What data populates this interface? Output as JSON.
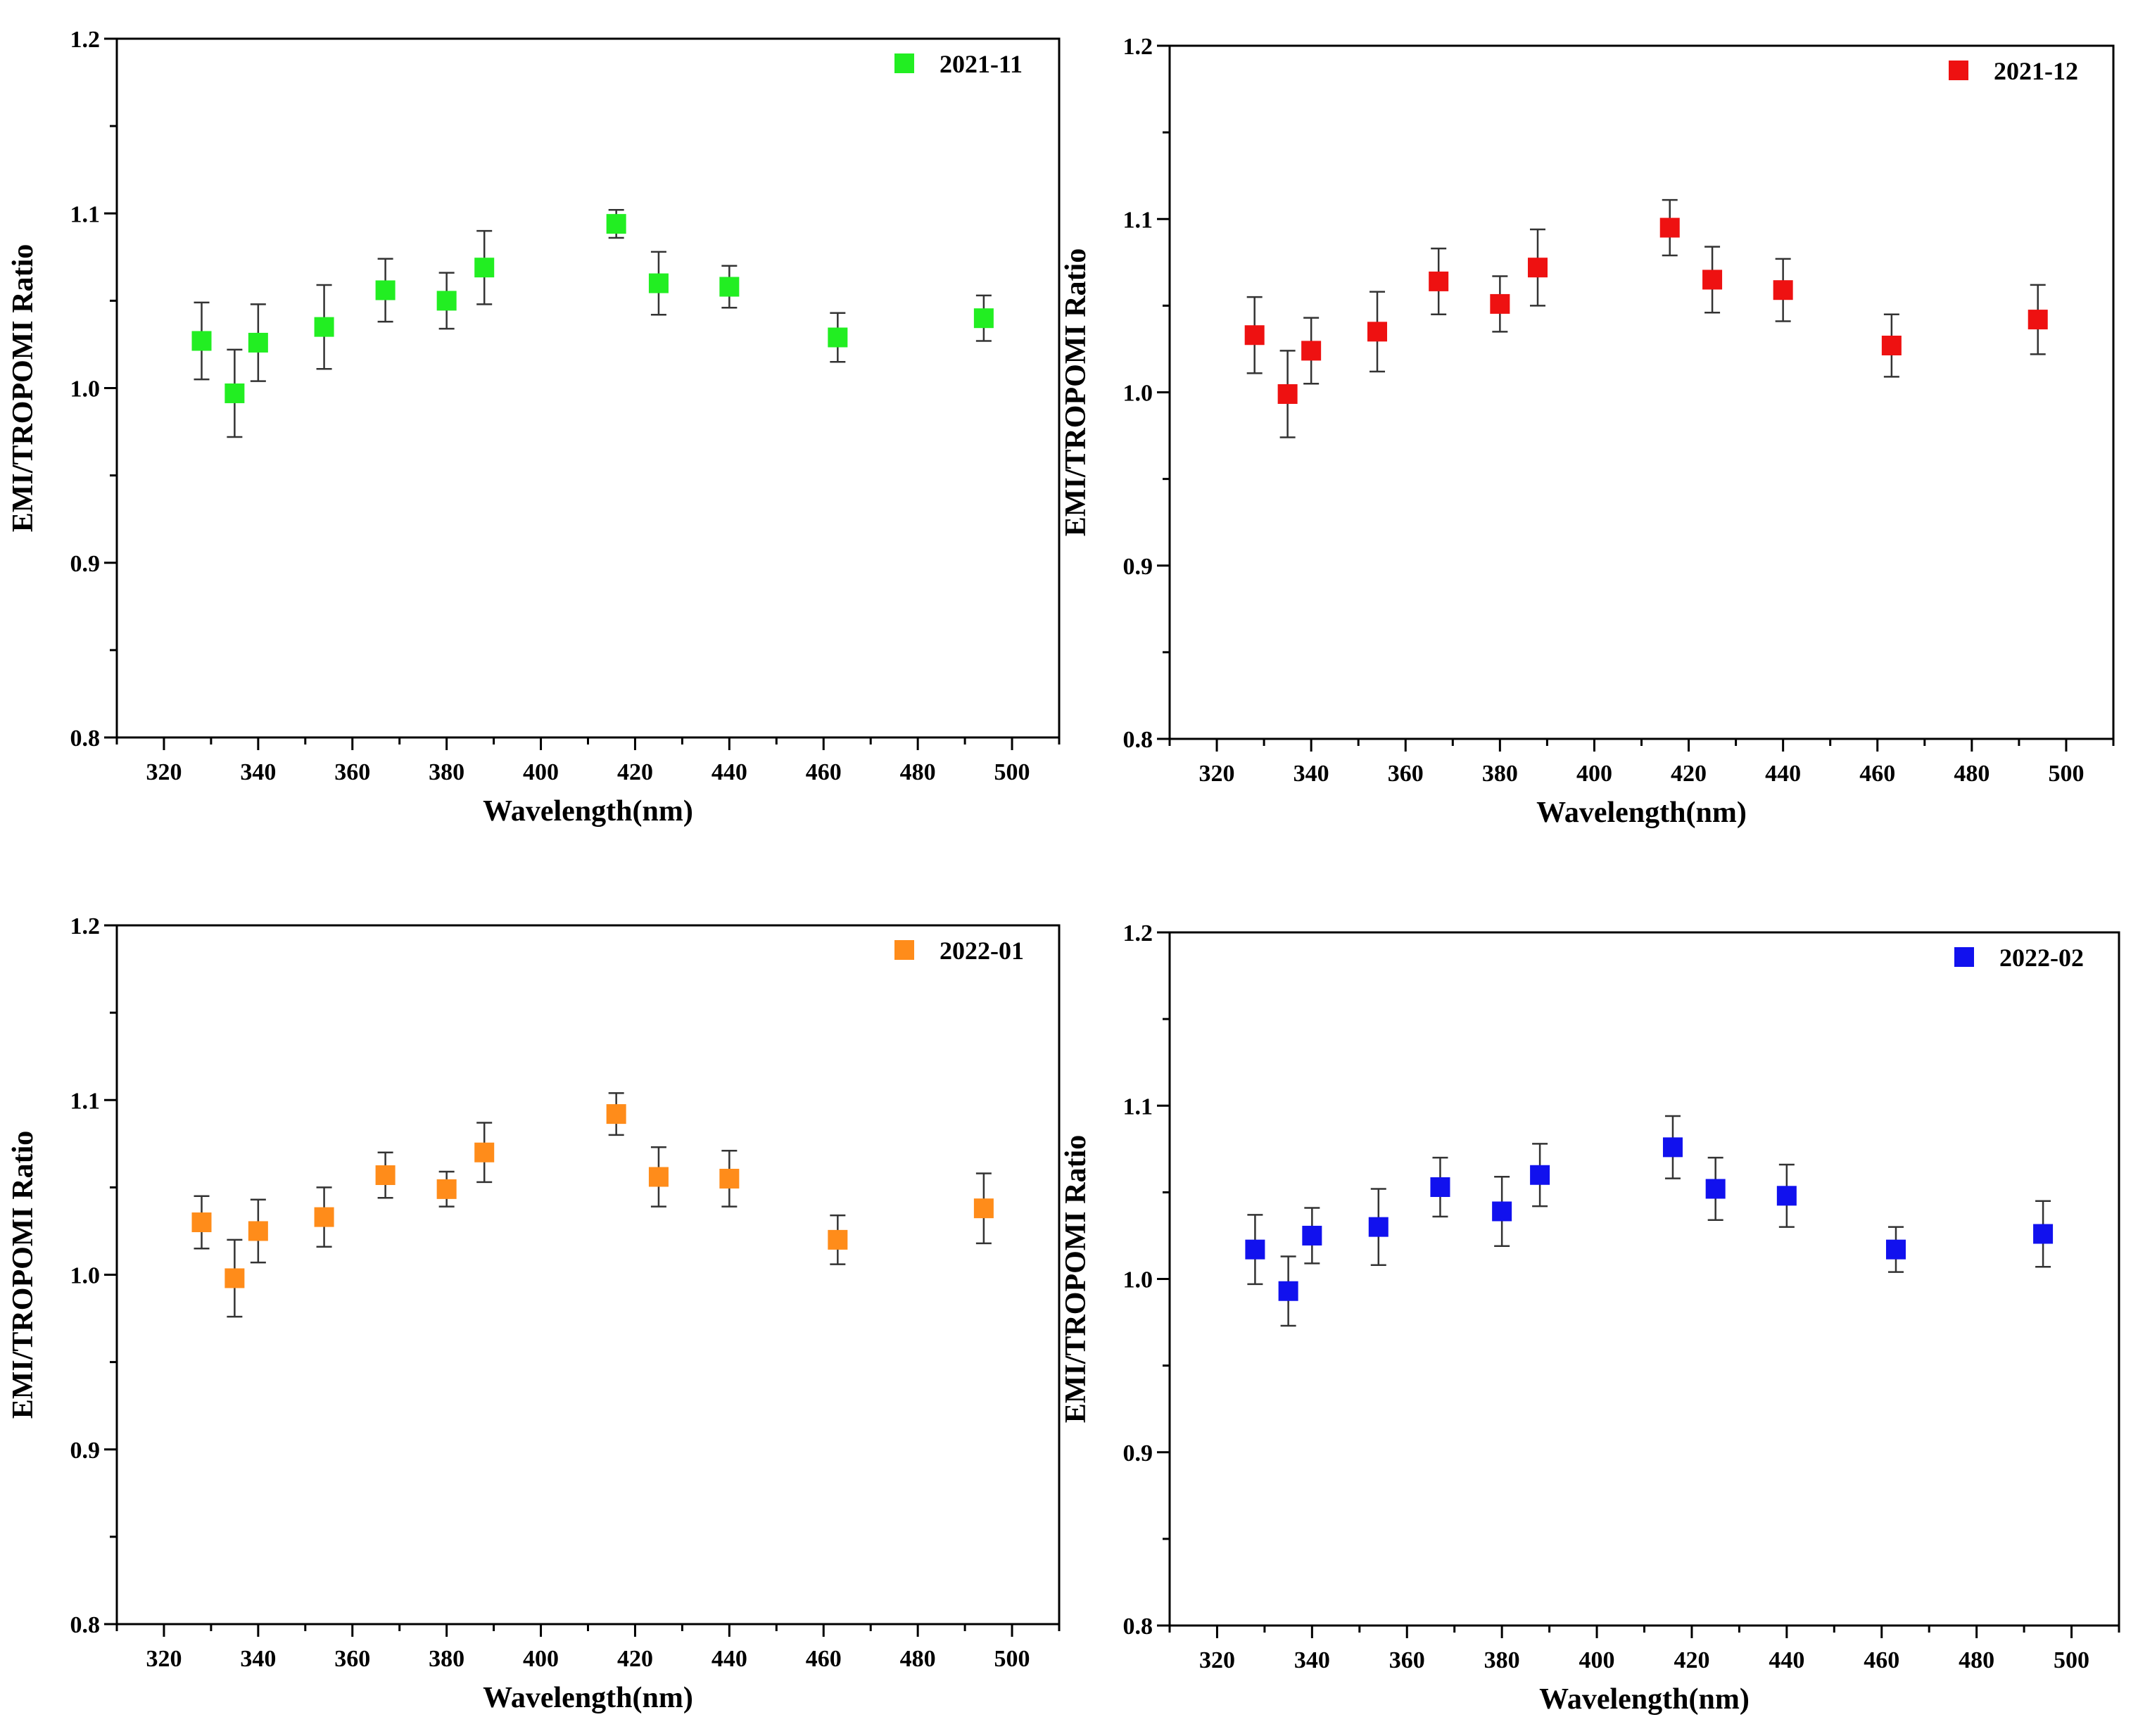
{
  "chart_data": [
    {
      "type": "scatter",
      "title": "",
      "xlabel": "Wavelength(nm)",
      "ylabel": "EMI/TROPOMI Ratio",
      "xlim": [
        310,
        510
      ],
      "ylim": [
        0.8,
        1.2
      ],
      "xticks": [
        "320",
        "340",
        "360",
        "380",
        "400",
        "420",
        "440",
        "460",
        "480",
        "500"
      ],
      "yticks": [
        "0.8",
        "0.9",
        "1.0",
        "1.1",
        "1.2"
      ],
      "legend": "top-right",
      "series": [
        {
          "name": "2021-11",
          "color": "#22ee22",
          "x": [
            328,
            335,
            340,
            354,
            367,
            380,
            388,
            416,
            425,
            440,
            463,
            494
          ],
          "y": [
            1.027,
            0.997,
            1.026,
            1.035,
            1.056,
            1.05,
            1.069,
            1.094,
            1.06,
            1.058,
            1.029,
            1.04
          ],
          "err": [
            0.022,
            0.025,
            0.022,
            0.024,
            0.018,
            0.016,
            0.021,
            0.008,
            0.018,
            0.012,
            0.014,
            0.013
          ]
        }
      ]
    },
    {
      "type": "scatter",
      "title": "",
      "xlabel": "Wavelength(nm)",
      "ylabel": "EMI/TROPOMI Ratio",
      "xlim": [
        310,
        510
      ],
      "ylim": [
        0.8,
        1.2
      ],
      "xticks": [
        "320",
        "340",
        "360",
        "380",
        "400",
        "420",
        "440",
        "460",
        "480",
        "500"
      ],
      "yticks": [
        "0.8",
        "0.9",
        "1.0",
        "1.1",
        "1.2"
      ],
      "legend": "top-right",
      "series": [
        {
          "name": "2021-12",
          "color": "#ee1111",
          "x": [
            328,
            335,
            340,
            354,
            367,
            380,
            388,
            416,
            425,
            440,
            463,
            494
          ],
          "y": [
            1.033,
            0.999,
            1.024,
            1.035,
            1.064,
            1.051,
            1.072,
            1.095,
            1.065,
            1.059,
            1.027,
            1.042
          ],
          "err": [
            0.022,
            0.025,
            0.019,
            0.023,
            0.019,
            0.016,
            0.022,
            0.016,
            0.019,
            0.018,
            0.018,
            0.02
          ]
        }
      ]
    },
    {
      "type": "scatter",
      "title": "",
      "xlabel": "Wavelength(nm)",
      "ylabel": "EMI/TROPOMI Ratio",
      "xlim": [
        310,
        510
      ],
      "ylim": [
        0.8,
        1.2
      ],
      "xticks": [
        "320",
        "340",
        "360",
        "380",
        "400",
        "420",
        "440",
        "460",
        "480",
        "500"
      ],
      "yticks": [
        "0.8",
        "0.9",
        "1.0",
        "1.1",
        "1.2"
      ],
      "legend": "top-right",
      "series": [
        {
          "name": "2022-01",
          "color": "#ff8c1a",
          "x": [
            328,
            335,
            340,
            354,
            367,
            380,
            388,
            416,
            425,
            440,
            463,
            494
          ],
          "y": [
            1.03,
            0.998,
            1.025,
            1.033,
            1.057,
            1.049,
            1.07,
            1.092,
            1.056,
            1.055,
            1.02,
            1.038
          ],
          "err": [
            0.015,
            0.022,
            0.018,
            0.017,
            0.013,
            0.01,
            0.017,
            0.012,
            0.017,
            0.016,
            0.014,
            0.02
          ]
        }
      ]
    },
    {
      "type": "scatter",
      "title": "",
      "xlabel": "Wavelength(nm)",
      "ylabel": "EMI/TROPOMI Ratio",
      "xlim": [
        310,
        510
      ],
      "ylim": [
        0.8,
        1.2
      ],
      "xticks": [
        "320",
        "340",
        "360",
        "380",
        "400",
        "420",
        "440",
        "460",
        "480",
        "500"
      ],
      "yticks": [
        "0.8",
        "0.9",
        "1.0",
        "1.1",
        "1.2"
      ],
      "legend": "top-right",
      "series": [
        {
          "name": "2022-02",
          "color": "#1111ee",
          "x": [
            328,
            335,
            340,
            354,
            367,
            380,
            388,
            416,
            425,
            440,
            463,
            494
          ],
          "y": [
            1.017,
            0.993,
            1.025,
            1.03,
            1.053,
            1.039,
            1.06,
            1.076,
            1.052,
            1.048,
            1.017,
            1.026
          ],
          "err": [
            0.02,
            0.02,
            0.016,
            0.022,
            0.017,
            0.02,
            0.018,
            0.018,
            0.018,
            0.018,
            0.013,
            0.019
          ]
        }
      ]
    }
  ]
}
